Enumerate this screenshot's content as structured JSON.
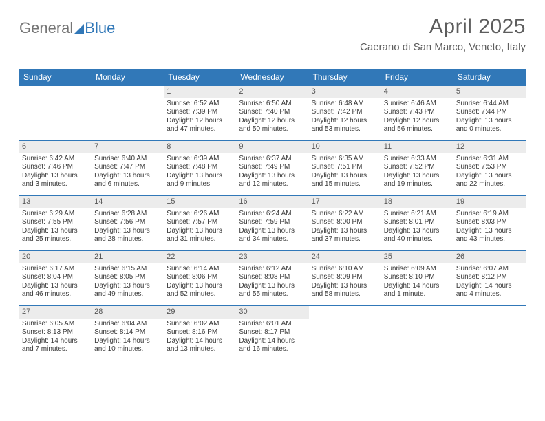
{
  "logo": {
    "part1": "General",
    "part2": "Blue"
  },
  "header": {
    "title": "April 2025",
    "location": "Caerano di San Marco, Veneto, Italy"
  },
  "colors": {
    "accent": "#3178b8",
    "daynum_bg": "#ececec",
    "text": "#3a3a3a",
    "header_text": "#5d5d5d",
    "logo_gray": "#757575"
  },
  "weekdays": [
    "Sunday",
    "Monday",
    "Tuesday",
    "Wednesday",
    "Thursday",
    "Friday",
    "Saturday"
  ],
  "leading_blanks": 2,
  "days": [
    {
      "n": 1,
      "sunrise": "6:52 AM",
      "sunset": "7:39 PM",
      "daylight": "12 hours and 47 minutes."
    },
    {
      "n": 2,
      "sunrise": "6:50 AM",
      "sunset": "7:40 PM",
      "daylight": "12 hours and 50 minutes."
    },
    {
      "n": 3,
      "sunrise": "6:48 AM",
      "sunset": "7:42 PM",
      "daylight": "12 hours and 53 minutes."
    },
    {
      "n": 4,
      "sunrise": "6:46 AM",
      "sunset": "7:43 PM",
      "daylight": "12 hours and 56 minutes."
    },
    {
      "n": 5,
      "sunrise": "6:44 AM",
      "sunset": "7:44 PM",
      "daylight": "13 hours and 0 minutes."
    },
    {
      "n": 6,
      "sunrise": "6:42 AM",
      "sunset": "7:46 PM",
      "daylight": "13 hours and 3 minutes."
    },
    {
      "n": 7,
      "sunrise": "6:40 AM",
      "sunset": "7:47 PM",
      "daylight": "13 hours and 6 minutes."
    },
    {
      "n": 8,
      "sunrise": "6:39 AM",
      "sunset": "7:48 PM",
      "daylight": "13 hours and 9 minutes."
    },
    {
      "n": 9,
      "sunrise": "6:37 AM",
      "sunset": "7:49 PM",
      "daylight": "13 hours and 12 minutes."
    },
    {
      "n": 10,
      "sunrise": "6:35 AM",
      "sunset": "7:51 PM",
      "daylight": "13 hours and 15 minutes."
    },
    {
      "n": 11,
      "sunrise": "6:33 AM",
      "sunset": "7:52 PM",
      "daylight": "13 hours and 19 minutes."
    },
    {
      "n": 12,
      "sunrise": "6:31 AM",
      "sunset": "7:53 PM",
      "daylight": "13 hours and 22 minutes."
    },
    {
      "n": 13,
      "sunrise": "6:29 AM",
      "sunset": "7:55 PM",
      "daylight": "13 hours and 25 minutes."
    },
    {
      "n": 14,
      "sunrise": "6:28 AM",
      "sunset": "7:56 PM",
      "daylight": "13 hours and 28 minutes."
    },
    {
      "n": 15,
      "sunrise": "6:26 AM",
      "sunset": "7:57 PM",
      "daylight": "13 hours and 31 minutes."
    },
    {
      "n": 16,
      "sunrise": "6:24 AM",
      "sunset": "7:59 PM",
      "daylight": "13 hours and 34 minutes."
    },
    {
      "n": 17,
      "sunrise": "6:22 AM",
      "sunset": "8:00 PM",
      "daylight": "13 hours and 37 minutes."
    },
    {
      "n": 18,
      "sunrise": "6:21 AM",
      "sunset": "8:01 PM",
      "daylight": "13 hours and 40 minutes."
    },
    {
      "n": 19,
      "sunrise": "6:19 AM",
      "sunset": "8:03 PM",
      "daylight": "13 hours and 43 minutes."
    },
    {
      "n": 20,
      "sunrise": "6:17 AM",
      "sunset": "8:04 PM",
      "daylight": "13 hours and 46 minutes."
    },
    {
      "n": 21,
      "sunrise": "6:15 AM",
      "sunset": "8:05 PM",
      "daylight": "13 hours and 49 minutes."
    },
    {
      "n": 22,
      "sunrise": "6:14 AM",
      "sunset": "8:06 PM",
      "daylight": "13 hours and 52 minutes."
    },
    {
      "n": 23,
      "sunrise": "6:12 AM",
      "sunset": "8:08 PM",
      "daylight": "13 hours and 55 minutes."
    },
    {
      "n": 24,
      "sunrise": "6:10 AM",
      "sunset": "8:09 PM",
      "daylight": "13 hours and 58 minutes."
    },
    {
      "n": 25,
      "sunrise": "6:09 AM",
      "sunset": "8:10 PM",
      "daylight": "14 hours and 1 minute."
    },
    {
      "n": 26,
      "sunrise": "6:07 AM",
      "sunset": "8:12 PM",
      "daylight": "14 hours and 4 minutes."
    },
    {
      "n": 27,
      "sunrise": "6:05 AM",
      "sunset": "8:13 PM",
      "daylight": "14 hours and 7 minutes."
    },
    {
      "n": 28,
      "sunrise": "6:04 AM",
      "sunset": "8:14 PM",
      "daylight": "14 hours and 10 minutes."
    },
    {
      "n": 29,
      "sunrise": "6:02 AM",
      "sunset": "8:16 PM",
      "daylight": "14 hours and 13 minutes."
    },
    {
      "n": 30,
      "sunrise": "6:01 AM",
      "sunset": "8:17 PM",
      "daylight": "14 hours and 16 minutes."
    }
  ],
  "labels": {
    "sunrise": "Sunrise:",
    "sunset": "Sunset:",
    "daylight": "Daylight:"
  }
}
